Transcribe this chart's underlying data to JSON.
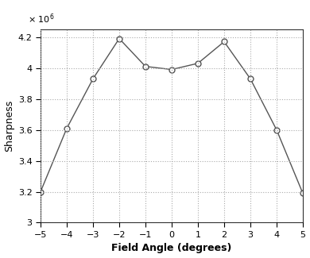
{
  "x": [
    -5,
    -4,
    -3,
    -2,
    -1,
    0,
    1,
    2,
    3,
    4,
    5
  ],
  "y": [
    3200000.0,
    3610000.0,
    3930000.0,
    4190000.0,
    4010000.0,
    3990000.0,
    4030000.0,
    4170000.0,
    3930000.0,
    3600000.0,
    3190000.0
  ],
  "xlabel": "Field Angle (degrees)",
  "ylabel": "Sharpness",
  "xlim": [
    -5,
    5
  ],
  "ylim": [
    3000000.0,
    4250000.0
  ],
  "xticks": [
    -5,
    -4,
    -3,
    -2,
    -1,
    0,
    1,
    2,
    3,
    4,
    5
  ],
  "yticks": [
    3000000.0,
    3200000.0,
    3400000.0,
    3600000.0,
    3800000.0,
    4000000.0,
    4200000.0
  ],
  "line_color": "#555555",
  "marker": "o",
  "marker_face": "white",
  "marker_edge": "#555555",
  "grid_color": "#aaaaaa",
  "bg_color": "#ffffff",
  "fig_color": "#ffffff"
}
